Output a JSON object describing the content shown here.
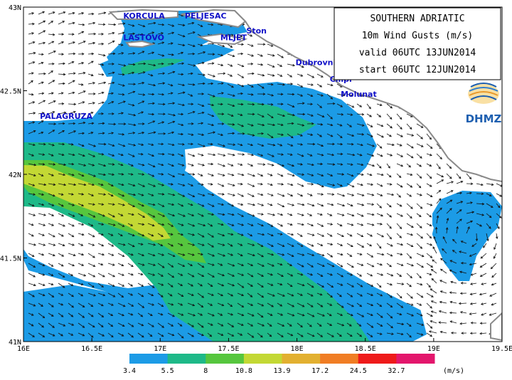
{
  "info_box": {
    "title": "SOUTHERN ADRIATIC",
    "variable": "10m Wind Gusts (m/s)",
    "valid": "valid 06UTC 13JUN2014",
    "start": "start 06UTC 12JUN2014"
  },
  "logo": {
    "text": "DHMZ"
  },
  "axes": {
    "lon_range": [
      16.0,
      19.5
    ],
    "lat_range": [
      41.0,
      43.0
    ],
    "x_ticks": [
      "16E",
      "16.5E",
      "17E",
      "17.5E",
      "18E",
      "18.5E",
      "19E",
      "19.5E"
    ],
    "y_ticks": [
      "43N",
      "42.5N",
      "42N",
      "41.5N",
      "41N"
    ]
  },
  "places": [
    {
      "name": "KORCULA",
      "lon": 16.73,
      "lat": 42.95
    },
    {
      "name": "PELJESAC",
      "lon": 17.18,
      "lat": 42.95
    },
    {
      "name": "Ston",
      "lon": 17.63,
      "lat": 42.86
    },
    {
      "name": "MLJET",
      "lon": 17.44,
      "lat": 42.82
    },
    {
      "name": "LASTOVO",
      "lon": 16.73,
      "lat": 42.82
    },
    {
      "name": "Dubrovnik",
      "lon": 17.99,
      "lat": 42.67
    },
    {
      "name": "Cilipi",
      "lon": 18.24,
      "lat": 42.57
    },
    {
      "name": "Molunat",
      "lon": 18.32,
      "lat": 42.48
    },
    {
      "name": "PALAGRUZA",
      "lon": 16.12,
      "lat": 42.35
    }
  ],
  "legend": {
    "unit": "(m/s)",
    "levels": [
      "3.4",
      "5.5",
      "8",
      "10.8",
      "13.9",
      "17.2",
      "24.5",
      "32.7"
    ],
    "colors": [
      "#1c9be6",
      "#1eb988",
      "#56c63e",
      "#c3d834",
      "#e2b030",
      "#f07d24",
      "#ee1a1a",
      "#e3166c"
    ]
  },
  "colors": {
    "land": "#ffffff",
    "coast": "#8a8a8a",
    "band_3_4": "#1c9be6",
    "band_5_5": "#1eb988",
    "band_8": "#56c63e",
    "band_10_8": "#c3d834",
    "place_text": "#1010c8"
  }
}
